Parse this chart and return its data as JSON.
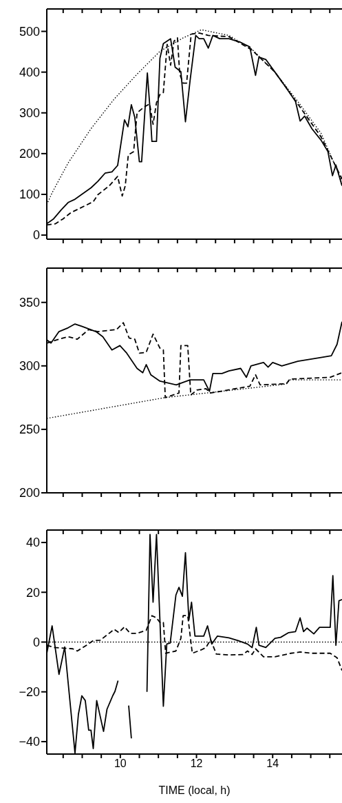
{
  "chart_data": [
    {
      "type": "line",
      "xlim": [
        8.07,
        15.82
      ],
      "ylim": [
        -10,
        555
      ],
      "tick_labels": "y",
      "yticks": [
        0,
        100,
        200,
        300,
        400,
        500
      ],
      "xticks": [
        {
          "value": 8.5,
          "label": null
        },
        {
          "value": 9,
          "label": null
        },
        {
          "value": 9.5,
          "label": null
        },
        {
          "value": 10,
          "label": null
        },
        {
          "value": 10.5,
          "label": null
        },
        {
          "value": 11,
          "label": null
        },
        {
          "value": 11.5,
          "label": null
        },
        {
          "value": 12,
          "label": null
        },
        {
          "value": 12.5,
          "label": null
        },
        {
          "value": 13,
          "label": null
        },
        {
          "value": 13.5,
          "label": null
        },
        {
          "value": 14,
          "label": null
        },
        {
          "value": 14.5,
          "label": null
        },
        {
          "value": 15,
          "label": null
        },
        {
          "value": 15.5,
          "label": null
        }
      ],
      "series": [
        {
          "color": "#000000",
          "line_style": "dotted",
          "x": [
            8.07,
            8.21,
            8.63,
            9.23,
            9.84,
            10.44,
            11.04,
            11.65,
            12.13,
            12.85,
            13.46,
            14.06,
            14.66,
            15.27,
            15.82
          ],
          "values": [
            75,
            104,
            177,
            261,
            334,
            395,
            451,
            484,
            504,
            490,
            456,
            400,
            328,
            250,
            132
          ]
        },
        {
          "color": "#000000",
          "line_style": "solid",
          "x": [
            8.07,
            8.25,
            8.45,
            8.63,
            8.81,
            9.23,
            9.41,
            9.6,
            9.78,
            9.93,
            10.11,
            10.2,
            10.29,
            10.38,
            10.5,
            10.56,
            10.71,
            10.77,
            10.83,
            10.95,
            11.04,
            11.13,
            11.32,
            11.44,
            11.59,
            11.71,
            11.83,
            11.98,
            12.07,
            12.19,
            12.31,
            12.43,
            12.61,
            12.85,
            13.16,
            13.4,
            13.55,
            13.64,
            13.82,
            14.06,
            14.36,
            14.6,
            14.72,
            14.84,
            15.03,
            15.27,
            15.45,
            15.57,
            15.66,
            15.82
          ],
          "values": [
            28,
            40,
            62,
            80,
            88,
            116,
            132,
            152,
            155,
            171,
            283,
            266,
            320,
            289,
            180,
            180,
            398,
            322,
            230,
            230,
            434,
            470,
            482,
            412,
            401,
            278,
            378,
            490,
            482,
            482,
            459,
            490,
            482,
            482,
            473,
            462,
            392,
            437,
            431,
            400,
            361,
            328,
            280,
            292,
            261,
            233,
            205,
            146,
            172,
            121
          ]
        },
        {
          "color": "#000000",
          "line_style": "dashed",
          "x": [
            8.07,
            8.3,
            8.5,
            8.7,
            9.29,
            9.41,
            9.71,
            9.93,
            10.05,
            10.13,
            10.21,
            10.35,
            10.44,
            10.62,
            10.77,
            10.86,
            10.95,
            11.04,
            11.13,
            11.23,
            11.32,
            11.41,
            11.5,
            11.56,
            11.65,
            11.74,
            11.86,
            12.07,
            12.31,
            12.85,
            13.46,
            14.06,
            14.66,
            15.27,
            15.82
          ],
          "values": [
            25,
            28,
            40,
            55,
            82,
            99,
            121,
            144,
            96,
            121,
            197,
            205,
            300,
            314,
            322,
            272,
            325,
            345,
            350,
            468,
            417,
            476,
            484,
            395,
            373,
            373,
            493,
            496,
            490,
            487,
            454,
            400,
            322,
            241,
            138
          ]
        }
      ]
    },
    {
      "type": "line",
      "xlim": [
        8.07,
        15.82
      ],
      "ylim": [
        200,
        377
      ],
      "tick_labels": "y",
      "yticks": [
        200,
        250,
        300,
        350
      ],
      "xticks": [
        {
          "value": 8.5,
          "label": null
        },
        {
          "value": 9,
          "label": null
        },
        {
          "value": 9.5,
          "label": null
        },
        {
          "value": 10,
          "label": null
        },
        {
          "value": 10.5,
          "label": null
        },
        {
          "value": 11,
          "label": null
        },
        {
          "value": 11.5,
          "label": null
        },
        {
          "value": 12,
          "label": null
        },
        {
          "value": 12.5,
          "label": null
        },
        {
          "value": 13,
          "label": null
        },
        {
          "value": 13.5,
          "label": null
        },
        {
          "value": 14,
          "label": null
        },
        {
          "value": 14.5,
          "label": null
        },
        {
          "value": 15,
          "label": null
        },
        {
          "value": 15.5,
          "label": null
        }
      ],
      "series": [
        {
          "color": "#000000",
          "line_style": "dotted",
          "x": [
            8.07,
            11.17,
            12.37,
            14.36,
            14.45,
            15.82
          ],
          "values": [
            258.6,
            275,
            279,
            285.7,
            289,
            289
          ]
        },
        {
          "color": "#000000",
          "line_style": "solid",
          "x": [
            8.07,
            8.18,
            8.39,
            8.63,
            8.81,
            9,
            9.36,
            9.54,
            9.78,
            9.99,
            10.17,
            10.44,
            10.59,
            10.68,
            10.8,
            11.04,
            11.47,
            11.83,
            12.19,
            12.34,
            12.43,
            12.67,
            12.85,
            13.16,
            13.31,
            13.43,
            13.76,
            13.88,
            14,
            14.24,
            14.66,
            15.27,
            15.54,
            15.69,
            15.82
          ],
          "values": [
            320.5,
            318,
            327,
            330,
            333,
            331,
            327,
            323,
            312.5,
            316,
            310,
            298,
            294.6,
            301,
            293,
            288,
            285,
            289,
            289,
            280,
            294,
            294,
            296,
            298,
            291,
            300,
            302.7,
            299,
            302.7,
            300,
            303.6,
            306.6,
            308,
            317,
            334.8
          ]
        },
        {
          "color": "#000000",
          "line_style": "dashed",
          "x": [
            8.07,
            8.33,
            8.63,
            8.87,
            9.17,
            9.41,
            9.9,
            10.08,
            10.23,
            10.38,
            10.5,
            10.68,
            10.86,
            11.04,
            11.13,
            11.18,
            11.54,
            11.59,
            11.77,
            11.85,
            12.01,
            12.25,
            12.37,
            13.4,
            13.55,
            13.67,
            14.36,
            14.45,
            15.51,
            15.82
          ],
          "values": [
            317.9,
            320.5,
            323,
            321,
            328.6,
            327,
            328.6,
            334,
            322,
            321,
            310,
            310.7,
            325,
            314,
            312.5,
            275,
            278.6,
            316,
            316,
            277,
            281,
            282,
            278.6,
            284,
            293,
            285,
            286,
            289.6,
            291,
            294.6
          ]
        }
      ]
    },
    {
      "type": "line",
      "xlim": [
        8.07,
        15.82
      ],
      "ylim": [
        -45,
        45
      ],
      "yticks": [
        -40,
        -20,
        0,
        20,
        40
      ],
      "xlabel": "TIME (local, h)",
      "xticks": [
        {
          "value": 8.5,
          "label": null
        },
        {
          "value": 9,
          "label": null
        },
        {
          "value": 9.5,
          "label": null
        },
        10,
        {
          "value": 10.5,
          "label": null
        },
        {
          "value": 11,
          "label": null
        },
        {
          "value": 11.5,
          "label": null
        },
        12,
        {
          "value": 12.5,
          "label": null
        },
        {
          "value": 13,
          "label": null
        },
        {
          "value": 13.5,
          "label": null
        },
        14,
        {
          "value": 14.5,
          "label": null
        },
        {
          "value": 15,
          "label": null
        },
        {
          "value": 15.5,
          "label": null
        }
      ],
      "ref_lines": [
        {
          "axis": "y",
          "value": 0,
          "line_style": "dotted",
          "color": "#000000"
        }
      ],
      "series": [
        {
          "color": "#000000",
          "line_style": "solid",
          "x": [
            8.07,
            8.21,
            8.39,
            8.54,
            8.81,
            8.9,
            8.99,
            9.08,
            9.17,
            9.23,
            9.29,
            9.38,
            9.56,
            9.65,
            9.8,
            9.86,
            9.94,
            10.02,
            10.17,
            10.22,
            10.29,
            10.41,
            10.56,
            10.7,
            10.78,
            10.86,
            10.95,
            11.13,
            11.22,
            11.31,
            11.46,
            11.54,
            11.63,
            11.71,
            11.8,
            11.87,
            11.96,
            12.19,
            12.29,
            12.4,
            12.55,
            12.85,
            13.09,
            13.34,
            13.46,
            13.57,
            13.64,
            13.82,
            14.06,
            14.21,
            14.42,
            14.6,
            14.72,
            14.81,
            14.9,
            15.08,
            15.23,
            15.39,
            15.51,
            15.58,
            15.66,
            15.74,
            15.82
          ],
          "values": [
            -4.5,
            6.5,
            -13,
            -2,
            -44.6,
            -29,
            -21.6,
            -23.5,
            -35.4,
            -35.4,
            -42.8,
            -23.5,
            -35.9,
            -27,
            -21.6,
            -19.8,
            -15.5,
            null,
            null,
            -25.5,
            -38.7,
            null,
            null,
            -20,
            43.2,
            16,
            43.2,
            -25.8,
            -0.8,
            -0.4,
            18.9,
            22,
            18.4,
            35.9,
            8.8,
            16,
            2.4,
            2.4,
            6.5,
            -0.8,
            2.4,
            1.7,
            0.6,
            -0.8,
            -2.2,
            5.9,
            -1.3,
            -2.2,
            1.5,
            1.9,
            3.8,
            4.2,
            9.7,
            4.2,
            5.6,
            3.3,
            5.9,
            5.9,
            5.9,
            26.7,
            -1.3,
            16.6,
            17.1
          ]
        },
        {
          "color": "#000000",
          "line_style": "dashed",
          "x": [
            8.07,
            8.27,
            8.75,
            8.87,
            9.11,
            9.29,
            9.47,
            9.84,
            9.96,
            10.11,
            10.26,
            10.44,
            10.68,
            10.83,
            10.95,
            11.04,
            11.13,
            11.19,
            11.46,
            11.59,
            11.65,
            11.77,
            11.89,
            12.13,
            12.25,
            12.37,
            12.52,
            12.85,
            13.22,
            13.34,
            13.46,
            13.55,
            13.76,
            14.06,
            14.48,
            14.72,
            15.02,
            15.51,
            15.69,
            15.82
          ],
          "values": [
            -1.3,
            -2.2,
            -2.7,
            -3.6,
            -1.3,
            0.6,
            0.7,
            5.1,
            3.8,
            6.1,
            3.5,
            3.5,
            4.7,
            10.6,
            9.7,
            7.9,
            7.9,
            -4.5,
            -3.6,
            1.5,
            10.6,
            10.6,
            -4.5,
            -3.1,
            -2.2,
            1,
            -4.8,
            -5.2,
            -5,
            -3.6,
            -5,
            -2.7,
            -5.9,
            -5.9,
            -4.5,
            -4,
            -4.5,
            -4.5,
            -6.3,
            -11.4
          ]
        }
      ]
    }
  ]
}
